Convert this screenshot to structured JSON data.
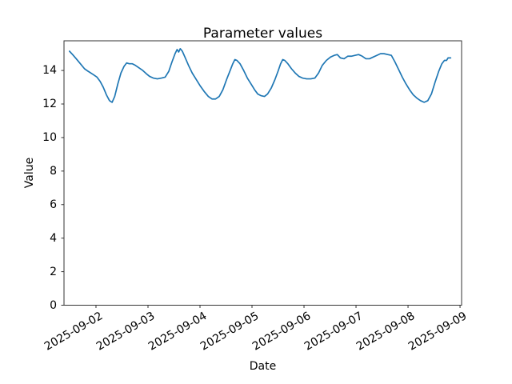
{
  "chart_data": {
    "type": "line",
    "title": "Parameter values",
    "xlabel": "Date",
    "ylabel": "Value",
    "grid": false,
    "legend": "none",
    "line_color": "#1f77b4",
    "axis_color": "#333333",
    "x_epoch": "2025-09-02",
    "x_unit": "days_since_epoch",
    "x_tick_positions_days": [
      0,
      1,
      2,
      3,
      4,
      5,
      6,
      7
    ],
    "x_tick_labels": [
      "2025-09-02",
      "2025-09-03",
      "2025-09-04",
      "2025-09-05",
      "2025-09-06",
      "2025-09-07",
      "2025-09-08",
      "2025-09-09"
    ],
    "y_ticks": [
      0,
      2,
      4,
      6,
      8,
      10,
      12,
      14
    ],
    "y_tick_labels": [
      "0",
      "2",
      "4",
      "6",
      "8",
      "10",
      "12",
      "14"
    ],
    "xlim_days": [
      -0.615,
      7.03
    ],
    "ylim": [
      0,
      15.77
    ],
    "series": [
      {
        "name": "Parameter",
        "x_days": [
          -0.51,
          -0.45,
          -0.38,
          -0.3,
          -0.22,
          -0.15,
          -0.05,
          0.02,
          0.08,
          0.14,
          0.2,
          0.26,
          0.31,
          0.36,
          0.42,
          0.48,
          0.54,
          0.59,
          0.64,
          0.7,
          0.76,
          0.83,
          0.9,
          0.97,
          1.03,
          1.1,
          1.18,
          1.26,
          1.33,
          1.4,
          1.46,
          1.52,
          1.56,
          1.59,
          1.62,
          1.66,
          1.71,
          1.78,
          1.85,
          1.92,
          2.0,
          2.08,
          2.16,
          2.23,
          2.3,
          2.37,
          2.44,
          2.51,
          2.58,
          2.63,
          2.67,
          2.71,
          2.77,
          2.84,
          2.91,
          2.98,
          3.05,
          3.11,
          3.17,
          3.24,
          3.3,
          3.37,
          3.44,
          3.5,
          3.55,
          3.59,
          3.63,
          3.69,
          3.76,
          3.83,
          3.9,
          3.97,
          4.05,
          4.13,
          4.21,
          4.28,
          4.35,
          4.43,
          4.51,
          4.58,
          4.64,
          4.7,
          4.77,
          4.84,
          4.91,
          4.98,
          5.05,
          5.12,
          5.19,
          5.26,
          5.33,
          5.4,
          5.47,
          5.54,
          5.61,
          5.68,
          5.75,
          5.82,
          5.89,
          5.96,
          6.03,
          6.1,
          6.17,
          6.24,
          6.31,
          6.38,
          6.45,
          6.52,
          6.59,
          6.65,
          6.7,
          6.74,
          6.77,
          6.82
        ],
        "y": [
          15.15,
          14.95,
          14.7,
          14.4,
          14.1,
          13.95,
          13.75,
          13.6,
          13.35,
          13.0,
          12.55,
          12.2,
          12.1,
          12.45,
          13.2,
          13.85,
          14.25,
          14.45,
          14.4,
          14.4,
          14.3,
          14.15,
          14.0,
          13.8,
          13.65,
          13.55,
          13.5,
          13.55,
          13.6,
          13.95,
          14.5,
          15.0,
          15.25,
          15.1,
          15.3,
          15.15,
          14.8,
          14.3,
          13.85,
          13.5,
          13.1,
          12.75,
          12.45,
          12.3,
          12.3,
          12.45,
          12.85,
          13.45,
          14.0,
          14.4,
          14.65,
          14.6,
          14.4,
          14.0,
          13.55,
          13.2,
          12.85,
          12.6,
          12.5,
          12.45,
          12.6,
          12.95,
          13.45,
          13.95,
          14.4,
          14.65,
          14.6,
          14.4,
          14.1,
          13.85,
          13.65,
          13.55,
          13.5,
          13.5,
          13.55,
          13.85,
          14.3,
          14.6,
          14.8,
          14.9,
          14.95,
          14.75,
          14.7,
          14.85,
          14.85,
          14.9,
          14.95,
          14.85,
          14.7,
          14.7,
          14.8,
          14.9,
          15.0,
          15.0,
          14.95,
          14.9,
          14.5,
          14.05,
          13.6,
          13.2,
          12.85,
          12.55,
          12.35,
          12.2,
          12.1,
          12.2,
          12.6,
          13.3,
          13.95,
          14.4,
          14.6,
          14.6,
          14.75,
          14.75
        ]
      }
    ]
  }
}
